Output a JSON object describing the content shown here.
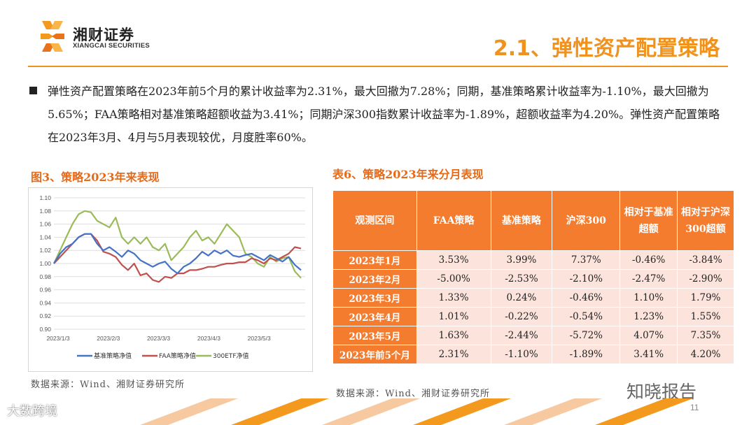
{
  "brand": {
    "name_cn": "湘财证券",
    "name_en": "XIANGCAI SECURITIES"
  },
  "page_title": "2.1、弹性资产配置策略",
  "summary": "弹性资产配置策略在2023年前5个月的累计收益率为2.31%，最大回撤为7.28%；同期，基准策略累计收益率为-1.10%，最大回撤为5.65%；FAA策略相对基准策略超额收益为3.41%；同期沪深300指数累计收益率为-1.89%，超额收益率为4.20%。弹性资产配置策略在2023年3月、4月与5月表现较优，月度胜率60%。",
  "figure": {
    "title": "图3、策略2023年来表现",
    "source": "数据来源：Wind、湘财证券研究所",
    "chart_data": {
      "type": "line",
      "y_ticks": [
        "1.10",
        "1.08",
        "1.06",
        "1.04",
        "1.02",
        "1.00",
        "0.98",
        "0.96",
        "0.94",
        "0.92",
        "0.90"
      ],
      "x_ticks": [
        "2023/1/3",
        "2023/2/3",
        "2023/3/3",
        "2023/4/3",
        "2023/5/3"
      ],
      "ylim": [
        0.9,
        1.1
      ],
      "grid": true,
      "legend_position": "bottom",
      "series": [
        {
          "name": "基准策略净值",
          "color": "#4472c4",
          "values": [
            1.0,
            1.015,
            1.025,
            1.03,
            1.04,
            1.045,
            1.045,
            1.03,
            1.02,
            1.025,
            1.018,
            1.01,
            1.02,
            1.015,
            1.005,
            1.0,
            0.995,
            1.0,
            1.003,
            0.992,
            0.985,
            0.995,
            1.0,
            1.008,
            1.018,
            1.012,
            1.02,
            1.015,
            1.02,
            1.012,
            1.01,
            1.013,
            1.015,
            1.01,
            1.005,
            1.013,
            1.008,
            1.003,
            1.01,
            0.998,
            0.99
          ]
        },
        {
          "name": "FAA策略净值",
          "color": "#c0504d",
          "values": [
            1.0,
            1.01,
            1.02,
            1.03,
            1.04,
            1.045,
            1.045,
            1.035,
            1.018,
            1.015,
            1.01,
            0.998,
            0.99,
            1.0,
            0.982,
            0.985,
            0.975,
            0.972,
            0.98,
            0.978,
            0.985,
            0.985,
            0.99,
            0.99,
            0.992,
            0.995,
            0.995,
            0.998,
            1.0,
            1.0,
            1.002,
            1.002,
            1.008,
            1.005,
            1.0,
            1.008,
            1.005,
            1.01,
            1.015,
            1.025,
            1.023
          ]
        },
        {
          "name": "300ETF净值",
          "color": "#9bbb59",
          "values": [
            1.0,
            1.02,
            1.04,
            1.06,
            1.075,
            1.08,
            1.078,
            1.065,
            1.06,
            1.055,
            1.07,
            1.04,
            1.03,
            1.04,
            1.03,
            1.04,
            1.025,
            1.02,
            1.03,
            1.005,
            1.015,
            1.025,
            1.04,
            1.05,
            1.035,
            1.04,
            1.03,
            1.045,
            1.06,
            1.05,
            1.04,
            1.015,
            1.01,
            1.0,
            0.995,
            1.01,
            1.003,
            1.008,
            1.01,
            0.988,
            0.978
          ]
        }
      ]
    }
  },
  "table": {
    "title": "表6、策略2023年来分月表现",
    "source": "数据来源：Wind、湘财证券研究所",
    "headers": [
      "观测区间",
      "FAA策略",
      "基准策略",
      "沪深300",
      "相对于基准超额",
      "相对于沪深300超额"
    ],
    "rows": [
      [
        "2023年1月",
        "3.53%",
        "3.99%",
        "7.37%",
        "-0.46%",
        "-3.84%"
      ],
      [
        "2023年2月",
        "-5.00%",
        "-2.53%",
        "-2.10%",
        "-2.47%",
        "-2.90%"
      ],
      [
        "2023年3月",
        "1.33%",
        "0.24%",
        "-0.46%",
        "1.10%",
        "1.79%"
      ],
      [
        "2023年4月",
        "1.01%",
        "-0.22%",
        "-0.54%",
        "1.23%",
        "1.55%"
      ],
      [
        "2023年5月",
        "1.63%",
        "-2.44%",
        "-5.72%",
        "4.07%",
        "7.35%"
      ],
      [
        "2023年前5个月",
        "2.31%",
        "-1.10%",
        "-1.89%",
        "3.41%",
        "4.20%"
      ]
    ]
  },
  "page_number": "11",
  "watermarks": {
    "top_right": "知晓报告",
    "bottom_left": "大数跨境"
  }
}
